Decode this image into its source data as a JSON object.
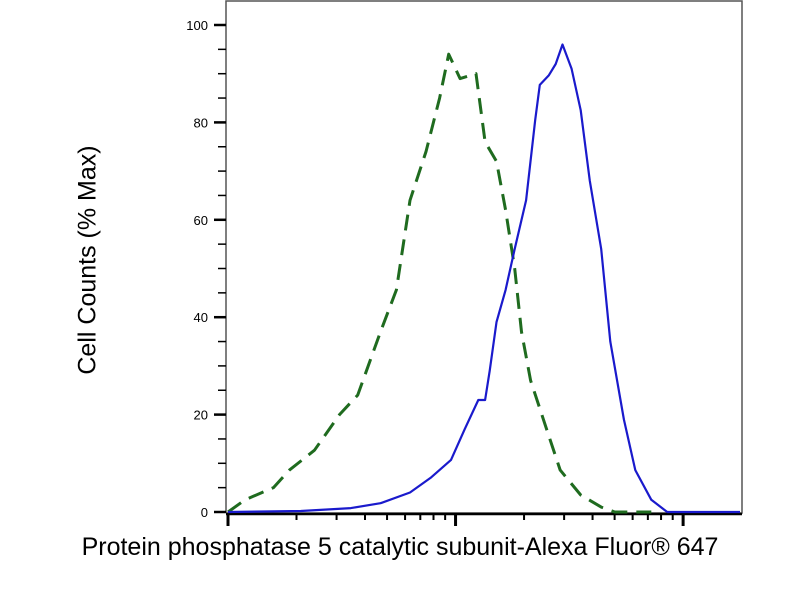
{
  "chart_data": {
    "type": "line",
    "title": "",
    "xlabel": "Protein phosphatase 5 catalytic subunit-Alexa Fluor® 647",
    "ylabel": "Cell Counts (% Max)",
    "x_scale": "log",
    "x_unit": "log10 decades (axis unlabeled)",
    "xlim": [
      0,
      2.25
    ],
    "ylim": [
      0,
      100
    ],
    "yticks": [
      0,
      20,
      40,
      60,
      80,
      100
    ],
    "grid": false,
    "series": [
      {
        "style": "dashed",
        "color": "#1f6b1f",
        "x": [
          0,
          0.075,
          0.15,
          0.2,
          0.27,
          0.38,
          0.49,
          0.57,
          0.67,
          0.74,
          0.8,
          0.87,
          0.93,
          0.97,
          1.02,
          1.09,
          1.13,
          1.18,
          1.22,
          1.26,
          1.29,
          1.33,
          1.4,
          1.46,
          1.55,
          1.64,
          1.7,
          1.86
        ],
        "y": [
          0,
          2.5,
          4,
          5,
          8.6,
          12.7,
          20,
          24,
          37,
          45.6,
          64,
          74,
          85,
          94,
          89,
          90,
          76,
          72,
          62,
          50,
          37,
          27,
          17,
          8.6,
          3.5,
          1,
          0,
          0
        ]
      },
      {
        "style": "solid",
        "color": "#1a1acc",
        "x": [
          0,
          0.32,
          0.54,
          0.67,
          0.8,
          0.89,
          0.98,
          1.04,
          1.1,
          1.13,
          1.15,
          1.18,
          1.22,
          1.26,
          1.31,
          1.35,
          1.37,
          1.41,
          1.44,
          1.47,
          1.51,
          1.55,
          1.59,
          1.64,
          1.68,
          1.74,
          1.79,
          1.86,
          1.93,
          2.25
        ],
        "y": [
          0,
          0.2,
          0.8,
          1.8,
          4,
          7,
          10.7,
          17,
          23,
          23,
          29,
          39,
          45.6,
          54,
          64,
          80.5,
          87.7,
          89.7,
          92,
          96,
          91,
          82.5,
          68,
          54,
          35,
          19,
          8.6,
          2.5,
          0,
          0
        ]
      }
    ]
  }
}
